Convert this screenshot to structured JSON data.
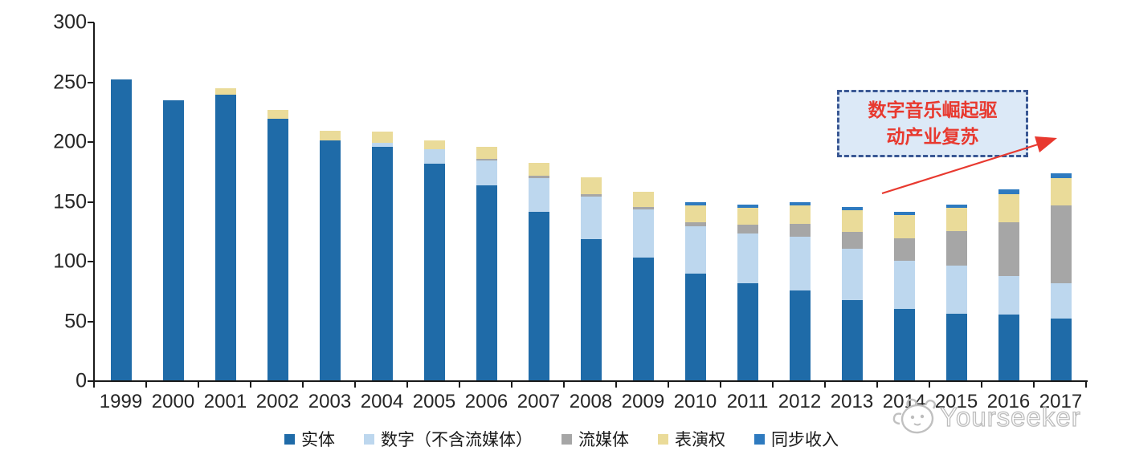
{
  "chart_data": {
    "type": "bar",
    "stacked": true,
    "title": "",
    "xlabel": "",
    "ylabel": "",
    "ylim": [
      0,
      300
    ],
    "y_ticks": [
      0,
      50,
      100,
      150,
      200,
      250,
      300
    ],
    "grid": false,
    "legend_position": "bottom",
    "categories": [
      "1999",
      "2000",
      "2001",
      "2002",
      "2003",
      "2004",
      "2005",
      "2006",
      "2007",
      "2008",
      "2009",
      "2010",
      "2011",
      "2012",
      "2013",
      "2014",
      "2015",
      "2016",
      "2017"
    ],
    "series": [
      {
        "name": "实体",
        "color": "#1f6ba8",
        "values": [
          252,
          234,
          239,
          219,
          201,
          195,
          181,
          163,
          141,
          118,
          103,
          89,
          81,
          75,
          67,
          60,
          56,
          55,
          52
        ]
      },
      {
        "name": "数字（不含流媒体）",
        "color": "#bdd7ee",
        "values": [
          0,
          0,
          0,
          0,
          0,
          4,
          12,
          21,
          28,
          36,
          40,
          40,
          42,
          45,
          43,
          40,
          40,
          32,
          29
        ]
      },
      {
        "name": "流媒体",
        "color": "#a6a6a6",
        "values": [
          0,
          0,
          0,
          0,
          0,
          0,
          0,
          1,
          2,
          2,
          2,
          3,
          7,
          11,
          14,
          19,
          29,
          45,
          65
        ]
      },
      {
        "name": "表演权",
        "color": "#eadb99",
        "values": [
          0,
          0,
          5,
          7,
          8,
          9,
          8,
          10,
          11,
          14,
          13,
          14,
          14,
          15,
          18,
          19,
          19,
          24,
          23
        ]
      },
      {
        "name": "同步收入",
        "color": "#2e7abf",
        "values": [
          0,
          0,
          0,
          0,
          0,
          0,
          0,
          0,
          0,
          0,
          0,
          3,
          3,
          3,
          3,
          3,
          3,
          4,
          4
        ]
      }
    ]
  },
  "annotation": {
    "line1": "数字音乐崛起驱",
    "line2": "动产业复苏",
    "text_color": "#e8392f",
    "border_color": "#3a5894",
    "fill_color": "#dce9f7"
  },
  "arrow": {
    "color": "#e8392f"
  },
  "watermark": {
    "text": "Yourseeker",
    "color": "#bdbdbd"
  }
}
